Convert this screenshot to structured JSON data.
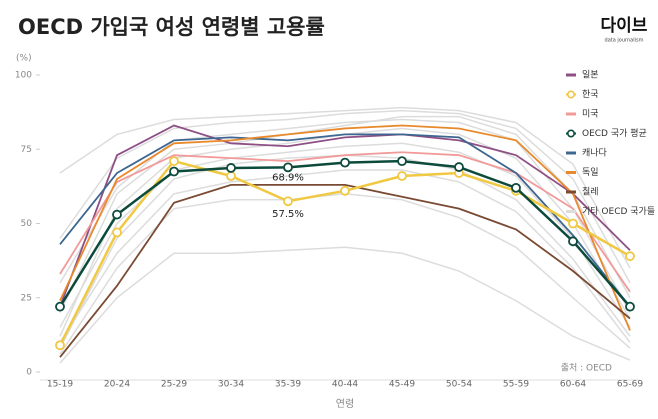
{
  "chart_data": {
    "type": "line",
    "title": "OECD 가입국 여성 연령별 고용률",
    "logo": "다이브",
    "logo_sub": "data journalism",
    "y_unit": "(%)",
    "x_label": "연령",
    "source": "출처 : OECD",
    "categories": [
      "15-19",
      "20-24",
      "25-29",
      "30-34",
      "35-39",
      "40-44",
      "45-49",
      "50-54",
      "55-59",
      "60-64",
      "65-69"
    ],
    "ylim": [
      0,
      100
    ],
    "yticks": [
      0,
      25,
      50,
      75,
      100
    ],
    "grid": false,
    "legend": "right",
    "other_series": {
      "name": "기타 OECD 국가들",
      "color": "#dcdcdc",
      "lines": [
        [
          67,
          80,
          85,
          86,
          87,
          88,
          89,
          88,
          84,
          70,
          35
        ],
        [
          45,
          72,
          82,
          84,
          85,
          87,
          88,
          87,
          82,
          65,
          30
        ],
        [
          30,
          62,
          78,
          80,
          82,
          84,
          85,
          84,
          78,
          55,
          20
        ],
        [
          15,
          50,
          68,
          72,
          74,
          76,
          77,
          74,
          66,
          45,
          15
        ],
        [
          10,
          40,
          60,
          64,
          66,
          68,
          68,
          64,
          54,
          35,
          10
        ],
        [
          6,
          35,
          55,
          58,
          58,
          60,
          58,
          52,
          42,
          25,
          8
        ],
        [
          3,
          25,
          40,
          40,
          41,
          42,
          40,
          34,
          24,
          12,
          4
        ],
        [
          20,
          60,
          75,
          77,
          80,
          83,
          86,
          86,
          80,
          60,
          25
        ],
        [
          12,
          55,
          72,
          75,
          77,
          80,
          82,
          80,
          72,
          50,
          18
        ],
        [
          8,
          45,
          65,
          70,
          72,
          73,
          72,
          68,
          58,
          38,
          12
        ]
      ]
    },
    "series": [
      {
        "name": "일본",
        "color": "#8e4f85",
        "markers": false,
        "values": [
          22,
          73,
          83,
          77,
          76,
          79,
          80,
          78,
          73,
          60,
          41
        ]
      },
      {
        "name": "한국",
        "color": "#f0c842",
        "markers": true,
        "values": [
          9,
          47,
          71,
          66,
          57.5,
          61,
          66,
          67,
          61,
          50,
          39
        ],
        "value_labels": [
          null,
          null,
          null,
          null,
          "57.5%",
          null,
          null,
          null,
          null,
          null,
          null
        ]
      },
      {
        "name": "미국",
        "color": "#f29a9a",
        "markers": false,
        "values": [
          33,
          64,
          73,
          72,
          71,
          73,
          74,
          73,
          67,
          55,
          27
        ]
      },
      {
        "name": "OECD 국가 평균",
        "color": "#0c4a3c",
        "markers": true,
        "values": [
          22,
          53,
          67.5,
          68.7,
          68.9,
          70.5,
          71,
          69,
          62,
          44,
          22
        ],
        "value_labels": [
          null,
          null,
          null,
          null,
          "68.9%",
          null,
          null,
          null,
          null,
          null,
          null
        ]
      },
      {
        "name": "캐나다",
        "color": "#3d6690",
        "markers": false,
        "values": [
          43,
          67,
          78,
          79,
          78,
          80,
          80,
          79,
          67,
          46,
          22
        ]
      },
      {
        "name": "독일",
        "color": "#e8892c",
        "markers": false,
        "values": [
          24,
          65,
          77,
          78,
          80,
          82,
          83,
          82,
          78,
          60,
          14
        ]
      },
      {
        "name": "칠레",
        "color": "#7a4a32",
        "markers": false,
        "values": [
          5,
          29,
          57,
          63,
          63,
          63,
          59,
          55,
          48,
          34,
          18
        ]
      }
    ]
  }
}
